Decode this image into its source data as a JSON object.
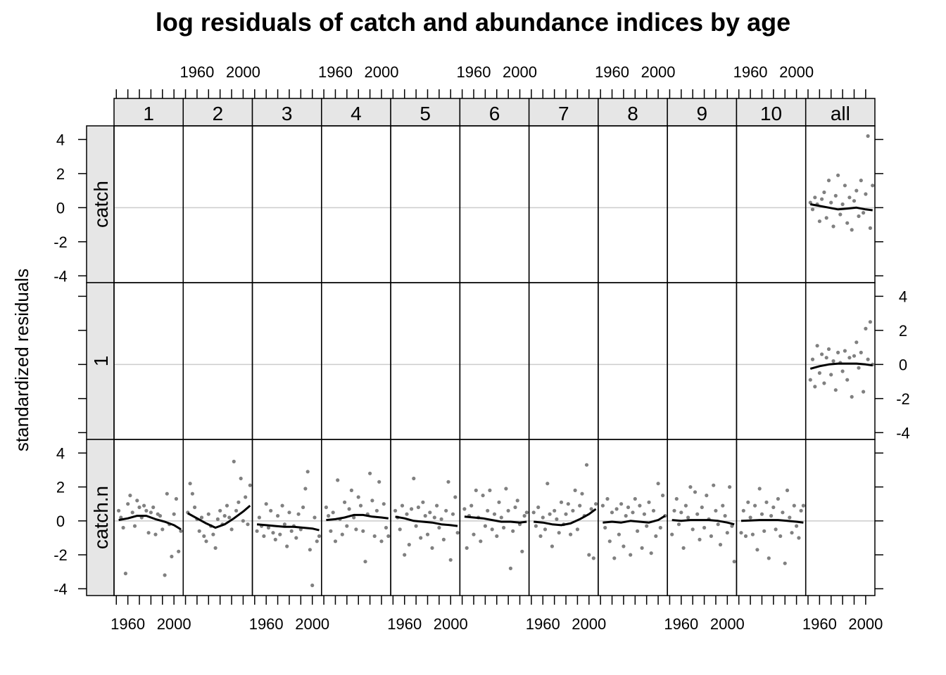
{
  "chart_data": {
    "type": "scatter",
    "title": "log residuals of catch and abundance indices by age",
    "ylabel": "standardized residuals",
    "xlabel": "",
    "columns": [
      "1",
      "2",
      "3",
      "4",
      "5",
      "6",
      "7",
      "8",
      "9",
      "10",
      "all"
    ],
    "rows": [
      "catch",
      "1",
      "catch.n"
    ],
    "x_ticks": [
      1960,
      2000
    ],
    "x_tick_labels": [
      "1960",
      "2000"
    ],
    "y_ticks": [
      -4,
      -2,
      0,
      2,
      4
    ],
    "y_tick_labels": [
      "-4",
      "-2",
      "0",
      "2",
      "4"
    ],
    "xlim": [
      1948,
      2008
    ],
    "ylim": [
      -4.4,
      4.8
    ],
    "grid": false,
    "reference_line_y": 0,
    "colors": {
      "points": "#808080",
      "smoother": "#000000",
      "strip_background": "#e6e6e6",
      "reference_line": "#cccccc"
    },
    "point_years": [
      1952,
      1954,
      1956,
      1958,
      1960,
      1962,
      1964,
      1966,
      1968,
      1970,
      1972,
      1974,
      1976,
      1978,
      1980,
      1982,
      1984,
      1986,
      1988,
      1990,
      1992,
      1994,
      1996,
      1998,
      2000,
      2002,
      2004,
      2006
    ],
    "series": [
      {
        "row": "catch.n",
        "column": "1",
        "values": [
          0.6,
          0.2,
          -0.4,
          -3.1,
          1.0,
          1.5,
          0.5,
          -0.3,
          1.2,
          0.8,
          0.2,
          0.9,
          0.6,
          -0.7,
          0.5,
          0.8,
          -0.8,
          0.4,
          0.3,
          -0.5,
          -3.2,
          1.6,
          -0.2,
          -2.1,
          0.4,
          1.3,
          -1.8,
          -0.6
        ],
        "smooth_x": [
          1952,
          1960,
          1968,
          1976,
          1984,
          1992,
          2000,
          2006
        ],
        "smooth_y": [
          0.05,
          0.15,
          0.3,
          0.3,
          0.1,
          -0.05,
          -0.25,
          -0.5
        ]
      },
      {
        "row": "catch.n",
        "column": "2",
        "values": [
          0.5,
          2.2,
          1.6,
          0.8,
          0.1,
          -0.6,
          0.2,
          -0.9,
          -1.2,
          0.4,
          -0.3,
          -0.8,
          -1.6,
          0.1,
          0.6,
          -0.2,
          0.3,
          0.9,
          0.2,
          -0.5,
          3.5,
          0.6,
          1.1,
          2.5,
          0.0,
          1.4,
          -0.2,
          2.1
        ],
        "smooth_x": [
          1952,
          1960,
          1968,
          1976,
          1984,
          1992,
          2000,
          2006
        ],
        "smooth_y": [
          0.45,
          0.15,
          -0.15,
          -0.4,
          -0.2,
          0.15,
          0.55,
          0.9
        ]
      },
      {
        "row": "catch.n",
        "column": "3",
        "values": [
          -0.6,
          0.2,
          -0.3,
          -0.9,
          1.0,
          -0.4,
          0.6,
          -0.7,
          -1.1,
          0.3,
          -0.8,
          0.9,
          -0.2,
          -1.5,
          0.5,
          -0.6,
          -0.3,
          -1.0,
          0.4,
          -0.5,
          0.8,
          1.9,
          2.9,
          -1.7,
          -3.8,
          0.2,
          -1.2,
          -0.9
        ],
        "smooth_x": [
          1952,
          1960,
          1968,
          1976,
          1984,
          1992,
          2000,
          2006
        ],
        "smooth_y": [
          -0.2,
          -0.25,
          -0.3,
          -0.35,
          -0.35,
          -0.4,
          -0.45,
          -0.55
        ]
      },
      {
        "row": "catch.n",
        "column": "4",
        "values": [
          0.8,
          0.3,
          -0.6,
          0.5,
          -1.2,
          2.4,
          0.1,
          -0.8,
          1.1,
          -0.3,
          0.7,
          1.8,
          0.2,
          -0.5,
          1.4,
          0.9,
          -0.6,
          -2.4,
          0.4,
          2.8,
          1.2,
          -0.9,
          0.6,
          2.3,
          -1.2,
          1.0,
          -0.4,
          -0.9
        ],
        "smooth_x": [
          1952,
          1960,
          1968,
          1976,
          1984,
          1992,
          2000,
          2006
        ],
        "smooth_y": [
          0.05,
          0.1,
          0.2,
          0.35,
          0.35,
          0.25,
          0.2,
          0.15
        ]
      },
      {
        "row": "catch.n",
        "column": "5",
        "values": [
          0.6,
          0.2,
          -0.5,
          0.9,
          -2.0,
          0.4,
          -1.4,
          0.7,
          2.5,
          -0.3,
          0.8,
          -1.0,
          1.1,
          0.3,
          -0.8,
          0.5,
          -1.6,
          0.2,
          0.9,
          -0.4,
          0.1,
          -1.1,
          0.6,
          2.3,
          -2.3,
          0.4,
          1.4,
          -0.7
        ],
        "smooth_x": [
          1952,
          1960,
          1968,
          1976,
          1984,
          1992,
          2000,
          2006
        ],
        "smooth_y": [
          0.25,
          0.15,
          0.0,
          -0.05,
          -0.1,
          -0.2,
          -0.25,
          -0.3
        ]
      },
      {
        "row": "catch.n",
        "column": "6",
        "values": [
          0.7,
          -1.6,
          0.3,
          0.9,
          -0.8,
          1.8,
          0.2,
          -1.2,
          1.5,
          -0.3,
          0.6,
          1.8,
          -0.5,
          0.4,
          -0.9,
          1.1,
          0.2,
          -0.4,
          1.9,
          0.6,
          -2.8,
          -0.6,
          0.8,
          1.2,
          -0.2,
          -1.8,
          0.3,
          0.5
        ],
        "smooth_x": [
          1952,
          1960,
          1968,
          1976,
          1984,
          1992,
          2000,
          2006
        ],
        "smooth_y": [
          0.25,
          0.2,
          0.15,
          0.05,
          -0.05,
          -0.05,
          -0.1,
          -0.05
        ]
      },
      {
        "row": "catch.n",
        "column": "7",
        "values": [
          0.5,
          -0.3,
          0.8,
          -0.9,
          0.2,
          -0.5,
          2.2,
          0.4,
          -1.5,
          0.6,
          0.1,
          -0.7,
          1.1,
          -0.2,
          0.4,
          1.0,
          -0.8,
          0.6,
          1.8,
          -0.5,
          0.9,
          1.6,
          0.3,
          3.3,
          -2.0,
          0.7,
          -2.2,
          1.0
        ],
        "smooth_x": [
          1952,
          1960,
          1968,
          1976,
          1984,
          1992,
          2000,
          2006
        ],
        "smooth_y": [
          -0.05,
          -0.1,
          -0.2,
          -0.25,
          -0.15,
          0.1,
          0.4,
          0.7
        ]
      },
      {
        "row": "catch.n",
        "column": "8",
        "values": [
          0.9,
          -0.4,
          1.3,
          -1.2,
          0.5,
          -2.2,
          0.7,
          -0.8,
          1.0,
          -1.5,
          0.3,
          0.8,
          -2.0,
          0.5,
          1.3,
          -0.6,
          0.9,
          -1.6,
          0.4,
          -0.3,
          1.1,
          -1.9,
          0.6,
          -0.9,
          2.2,
          -0.4,
          1.5,
          0.3
        ],
        "smooth_x": [
          1952,
          1960,
          1968,
          1976,
          1984,
          1992,
          2000,
          2006
        ],
        "smooth_y": [
          -0.1,
          -0.05,
          -0.1,
          0.0,
          -0.05,
          -0.1,
          0.05,
          0.3
        ]
      },
      {
        "row": "catch.n",
        "column": "9",
        "values": [
          -0.8,
          0.6,
          1.3,
          -0.2,
          0.5,
          -1.6,
          0.9,
          0.2,
          2.0,
          -0.5,
          1.7,
          0.4,
          -1.1,
          0.8,
          -0.4,
          1.5,
          0.1,
          -0.9,
          2.1,
          0.6,
          -0.2,
          -1.4,
          0.9,
          0.3,
          -0.7,
          2.0,
          -0.3,
          -2.4
        ],
        "smooth_x": [
          1952,
          1960,
          1968,
          1976,
          1984,
          1992,
          2000,
          2006
        ],
        "smooth_y": [
          0.05,
          0.0,
          0.05,
          0.05,
          0.05,
          0.0,
          -0.1,
          -0.2
        ]
      },
      {
        "row": "catch.n",
        "column": "10",
        "values": [
          -0.7,
          0.6,
          -0.9,
          1.1,
          0.2,
          -0.8,
          0.9,
          -1.7,
          1.9,
          0.4,
          -0.6,
          1.1,
          -2.2,
          0.3,
          0.8,
          -0.5,
          1.3,
          -0.9,
          0.5,
          -2.5,
          1.8,
          0.2,
          -0.7,
          0.9,
          -0.3,
          -1.0,
          0.6,
          0.9
        ],
        "smooth_x": [
          1952,
          1960,
          1968,
          1976,
          1984,
          1992,
          2000,
          2006
        ],
        "smooth_y": [
          0.0,
          0.02,
          0.05,
          0.05,
          0.05,
          0.0,
          -0.05,
          -0.1
        ]
      },
      {
        "row": "catch",
        "column": "all",
        "values": [
          0.3,
          -0.1,
          0.6,
          0.2,
          -0.8,
          0.5,
          0.9,
          -0.6,
          1.6,
          0.3,
          -1.1,
          0.7,
          1.9,
          -0.4,
          0.2,
          1.3,
          -0.9,
          0.6,
          -1.3,
          0.4,
          1.0,
          -0.5,
          1.6,
          -0.3,
          0.8,
          4.2,
          -1.2,
          1.3
        ],
        "smooth_x": [
          1952,
          1960,
          1968,
          1976,
          1984,
          1992,
          2000,
          2006
        ],
        "smooth_y": [
          0.2,
          0.1,
          0.0,
          -0.1,
          -0.05,
          0.0,
          -0.1,
          -0.15
        ]
      },
      {
        "row": "1",
        "column": "all",
        "values": [
          -0.9,
          0.3,
          -1.3,
          1.1,
          -0.5,
          0.6,
          -1.1,
          0.4,
          0.9,
          -0.6,
          0.2,
          -1.5,
          0.7,
          0.1,
          -0.4,
          0.8,
          -0.9,
          0.4,
          -1.9,
          0.5,
          1.3,
          -0.2,
          0.7,
          -1.6,
          2.1,
          0.3,
          2.5,
          0.0
        ],
        "smooth_x": [
          1952,
          1960,
          1968,
          1976,
          1984,
          1992,
          2000,
          2006
        ],
        "smooth_y": [
          -0.25,
          -0.1,
          0.0,
          0.05,
          0.05,
          0.05,
          0.0,
          -0.05
        ]
      }
    ]
  }
}
